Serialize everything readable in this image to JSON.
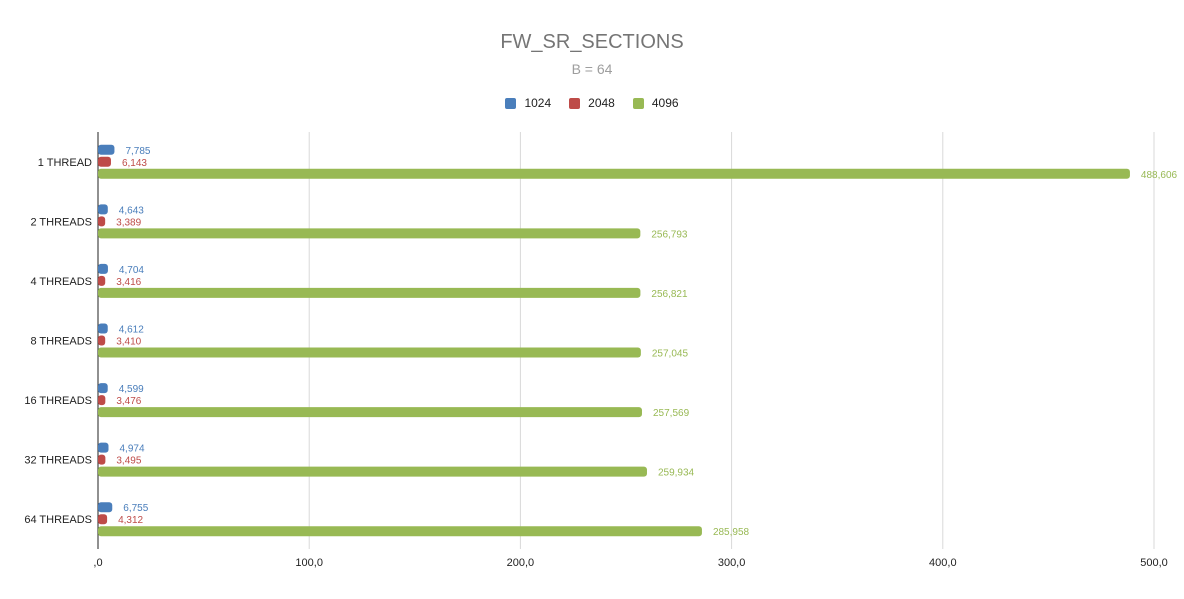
{
  "chart_data": {
    "type": "bar",
    "orientation": "horizontal",
    "title": "FW_SR_SECTIONS",
    "subtitle": "B = 64",
    "categories": [
      "1 THREAD",
      "2 THREADS",
      "4 THREADS",
      "8 THREADS",
      "16 THREADS",
      "32 THREADS",
      "64 THREADS"
    ],
    "series": [
      {
        "name": "1024",
        "color": "#4a7ebb",
        "values": [
          7.785,
          4.643,
          4.704,
          4.612,
          4.599,
          4.974,
          6.755
        ],
        "labels": [
          "7,785",
          "4,643",
          "4,704",
          "4,612",
          "4,599",
          "4,974",
          "6,755"
        ]
      },
      {
        "name": "2048",
        "color": "#be4b48",
        "values": [
          6.143,
          3.389,
          3.416,
          3.41,
          3.476,
          3.495,
          4.312
        ],
        "labels": [
          "6,143",
          "3,389",
          "3,416",
          "3,410",
          "3,476",
          "3,495",
          "4,312"
        ]
      },
      {
        "name": "4096",
        "color": "#98b954",
        "values": [
          488.606,
          256.793,
          256.821,
          257.045,
          257.569,
          259.934,
          285.958
        ],
        "labels": [
          "488,606",
          "256,793",
          "256,821",
          "257,045",
          "257,569",
          "259,934",
          "285,958"
        ]
      }
    ],
    "xlim": [
      0,
      500
    ],
    "xticks": [
      0,
      100,
      200,
      300,
      400,
      500
    ],
    "xtick_labels": [
      ",0",
      "100,0",
      "200,0",
      "300,0",
      "400,0",
      "500,0"
    ],
    "grid": true,
    "legend_position": "top"
  }
}
